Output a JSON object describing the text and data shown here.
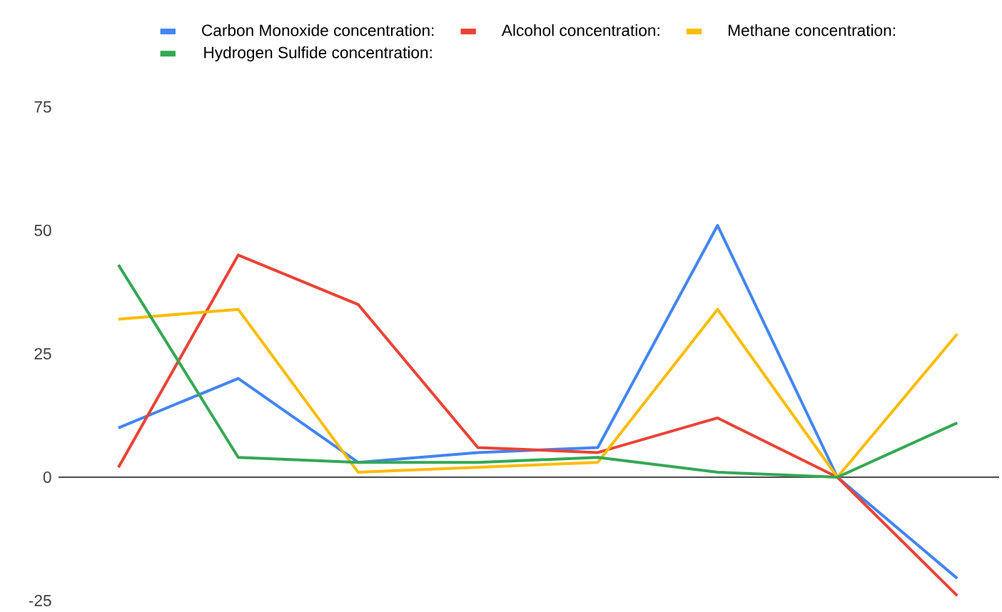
{
  "chart_data": {
    "type": "line",
    "categories": [
      null,
      null,
      null,
      null,
      null,
      null,
      null,
      null
    ],
    "series": [
      {
        "name": "Carbon Monoxide concentration:",
        "color": "#4285f4",
        "values": [
          10,
          20,
          3,
          5,
          6,
          51,
          0,
          -20.5
        ]
      },
      {
        "name": "Alcohol concentration:",
        "color": "#ea4335",
        "values": [
          2,
          45,
          35,
          6,
          5,
          12,
          0,
          -24
        ]
      },
      {
        "name": "Methane concentration:",
        "color": "#fbbc04",
        "values": [
          32,
          34,
          1,
          2,
          3,
          34,
          0,
          29
        ]
      },
      {
        "name": "Hydrogen Sulfide concentration:",
        "color": "#34a853",
        "values": [
          43,
          4,
          3,
          3,
          4,
          1,
          0,
          11
        ]
      }
    ],
    "ylim": [
      -25,
      75
    ],
    "yticks": [
      -25,
      0,
      25,
      50,
      75
    ],
    "tick_labels": "y",
    "legend": "top",
    "marker": "none",
    "line_style": "solid"
  }
}
